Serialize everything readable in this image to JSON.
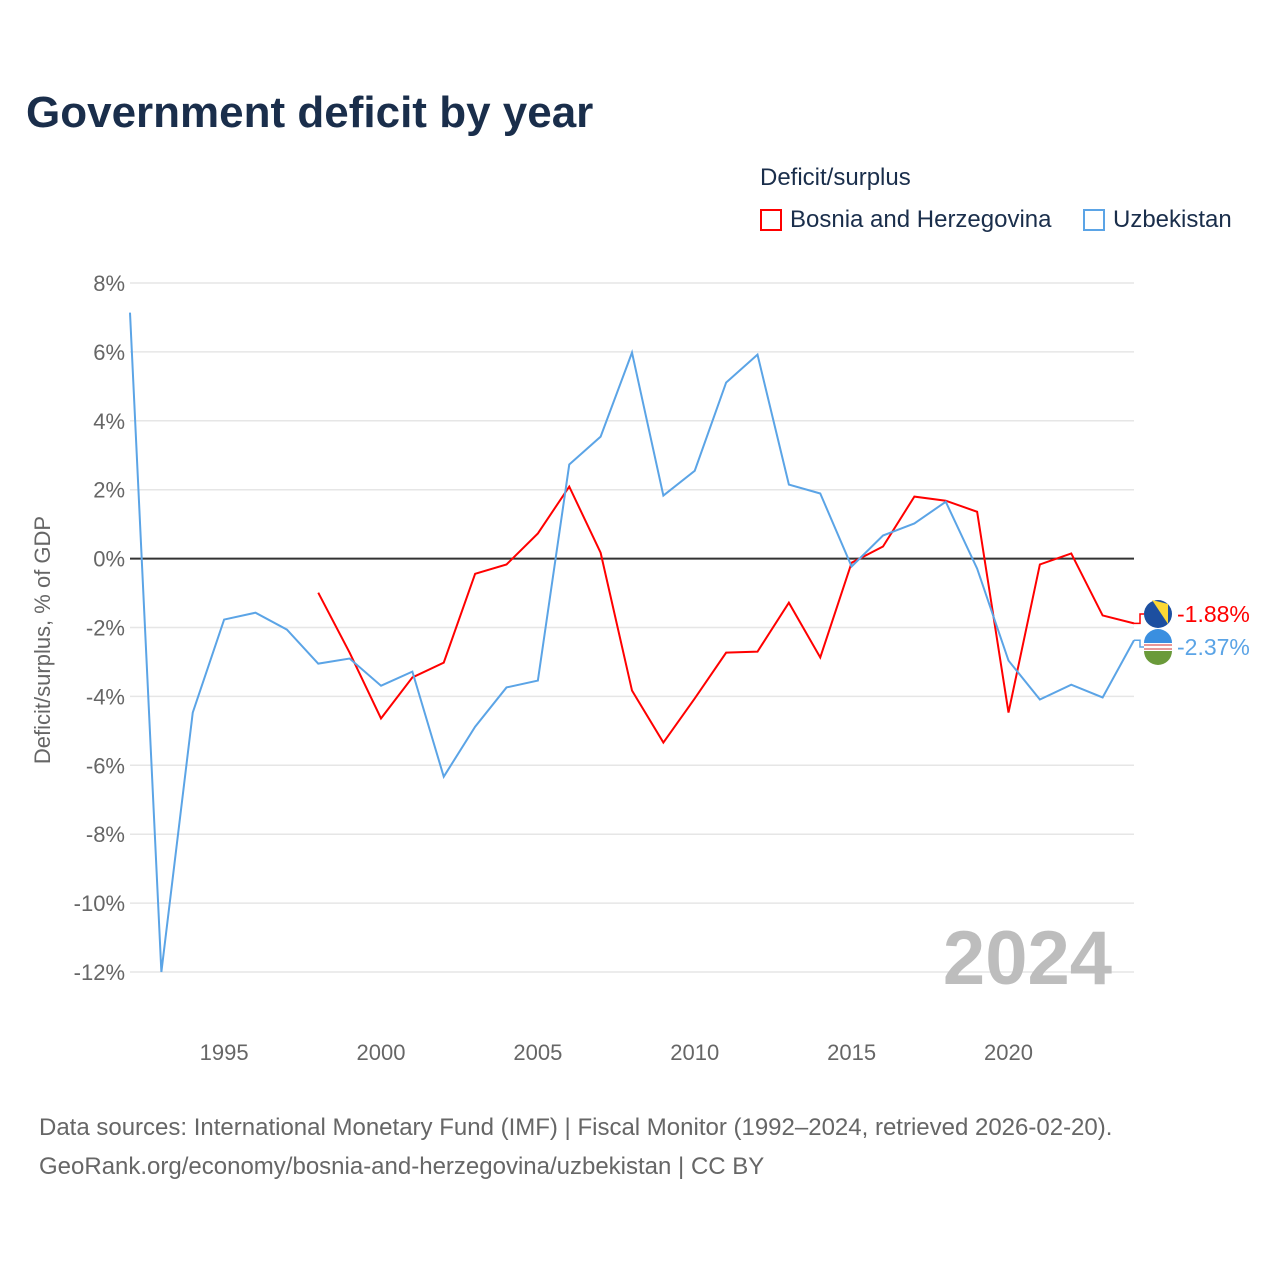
{
  "chart_data": {
    "type": "line",
    "title": "Government deficit by year",
    "ylabel": "Deficit/surplus, % of GDP",
    "xlabel": "",
    "ylim": [
      -12,
      8
    ],
    "xlim": [
      1992,
      2024
    ],
    "yticks": [
      8,
      6,
      4,
      2,
      0,
      -2,
      -4,
      -6,
      -8,
      -10,
      -12
    ],
    "ytick_labels": [
      "8%",
      "6%",
      "4%",
      "2%",
      "0%",
      "-2%",
      "-4%",
      "-6%",
      "-8%",
      "-10%",
      "-12%"
    ],
    "xticks": [
      1995,
      2000,
      2005,
      2010,
      2015,
      2020
    ],
    "xtick_labels": [
      "1995",
      "2000",
      "2005",
      "2010",
      "2015",
      "2020"
    ],
    "grid": true,
    "legend_title": "Deficit/surplus",
    "legend_position": "top-right",
    "watermark_year": "2024",
    "series": [
      {
        "name": "Bosnia and Herzegovina",
        "color": "#ff0000",
        "end_label": "-1.88%",
        "x": [
          1998,
          1999,
          2000,
          2001,
          2002,
          2003,
          2004,
          2005,
          2006,
          2007,
          2008,
          2009,
          2010,
          2011,
          2012,
          2013,
          2014,
          2015,
          2016,
          2017,
          2018,
          2019,
          2020,
          2021,
          2022,
          2023,
          2024
        ],
        "values": [
          -0.99,
          -2.73,
          -4.64,
          -3.45,
          -3.02,
          -0.44,
          -0.17,
          0.73,
          2.09,
          0.17,
          -3.83,
          -5.34,
          -4.06,
          -2.73,
          -2.7,
          -1.28,
          -2.87,
          -0.12,
          0.35,
          1.8,
          1.68,
          1.36,
          -4.47,
          -0.17,
          0.15,
          -1.65,
          -1.88
        ]
      },
      {
        "name": "Uzbekistan",
        "color": "#5ba4e6",
        "end_label": "-2.37%",
        "x": [
          1992,
          1993,
          1994,
          1995,
          1996,
          1997,
          1998,
          1999,
          2000,
          2001,
          2002,
          2003,
          2004,
          2005,
          2006,
          2007,
          2008,
          2009,
          2010,
          2011,
          2012,
          2013,
          2014,
          2015,
          2016,
          2017,
          2018,
          2019,
          2020,
          2021,
          2022,
          2023,
          2024
        ],
        "values": [
          7.14,
          -12.0,
          -4.47,
          -1.77,
          -1.57,
          -2.06,
          -3.05,
          -2.9,
          -3.69,
          -3.28,
          -6.33,
          -4.88,
          -3.74,
          -3.54,
          2.73,
          3.54,
          5.98,
          1.83,
          2.55,
          5.11,
          5.92,
          2.15,
          1.89,
          -0.23,
          0.67,
          1.02,
          1.65,
          -0.29,
          -2.96,
          -4.09,
          -3.66,
          -4.03,
          -2.37
        ]
      }
    ]
  },
  "footer": {
    "line1": "Data sources: International Monetary Fund (IMF) | Fiscal Monitor (1992–2024, retrieved 2026-02-20).",
    "line2": "GeoRank.org/economy/bosnia-and-herzegovina/uzbekistan | CC BY"
  }
}
